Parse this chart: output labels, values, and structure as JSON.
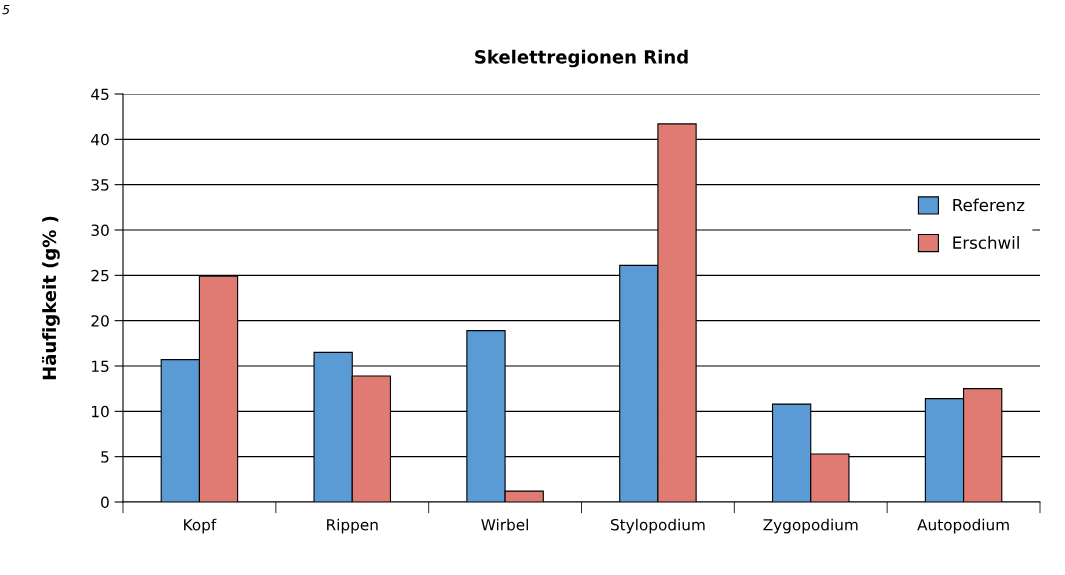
{
  "chart_data": {
    "type": "bar",
    "title": "Skelettregionen Rind",
    "ylabel": "Häufigkeit (g% )",
    "categories": [
      "Kopf",
      "Rippen",
      "Wirbel",
      "Stylopodium",
      "Zygopodium",
      "Autopodium"
    ],
    "series": [
      {
        "name": "Referenz",
        "color": "#5b9bd5",
        "values": [
          15.7,
          16.5,
          18.9,
          26.1,
          10.8,
          11.4
        ]
      },
      {
        "name": "Erschwil",
        "color": "#e07b73",
        "values": [
          24.9,
          13.9,
          1.2,
          41.7,
          5.3,
          12.5
        ]
      }
    ],
    "ylim": [
      0,
      45
    ],
    "yticks": [
      0,
      5,
      10,
      15,
      20,
      25,
      30,
      35,
      40,
      45
    ],
    "grid": "y",
    "legend": "right",
    "annotations": [
      "5"
    ]
  }
}
